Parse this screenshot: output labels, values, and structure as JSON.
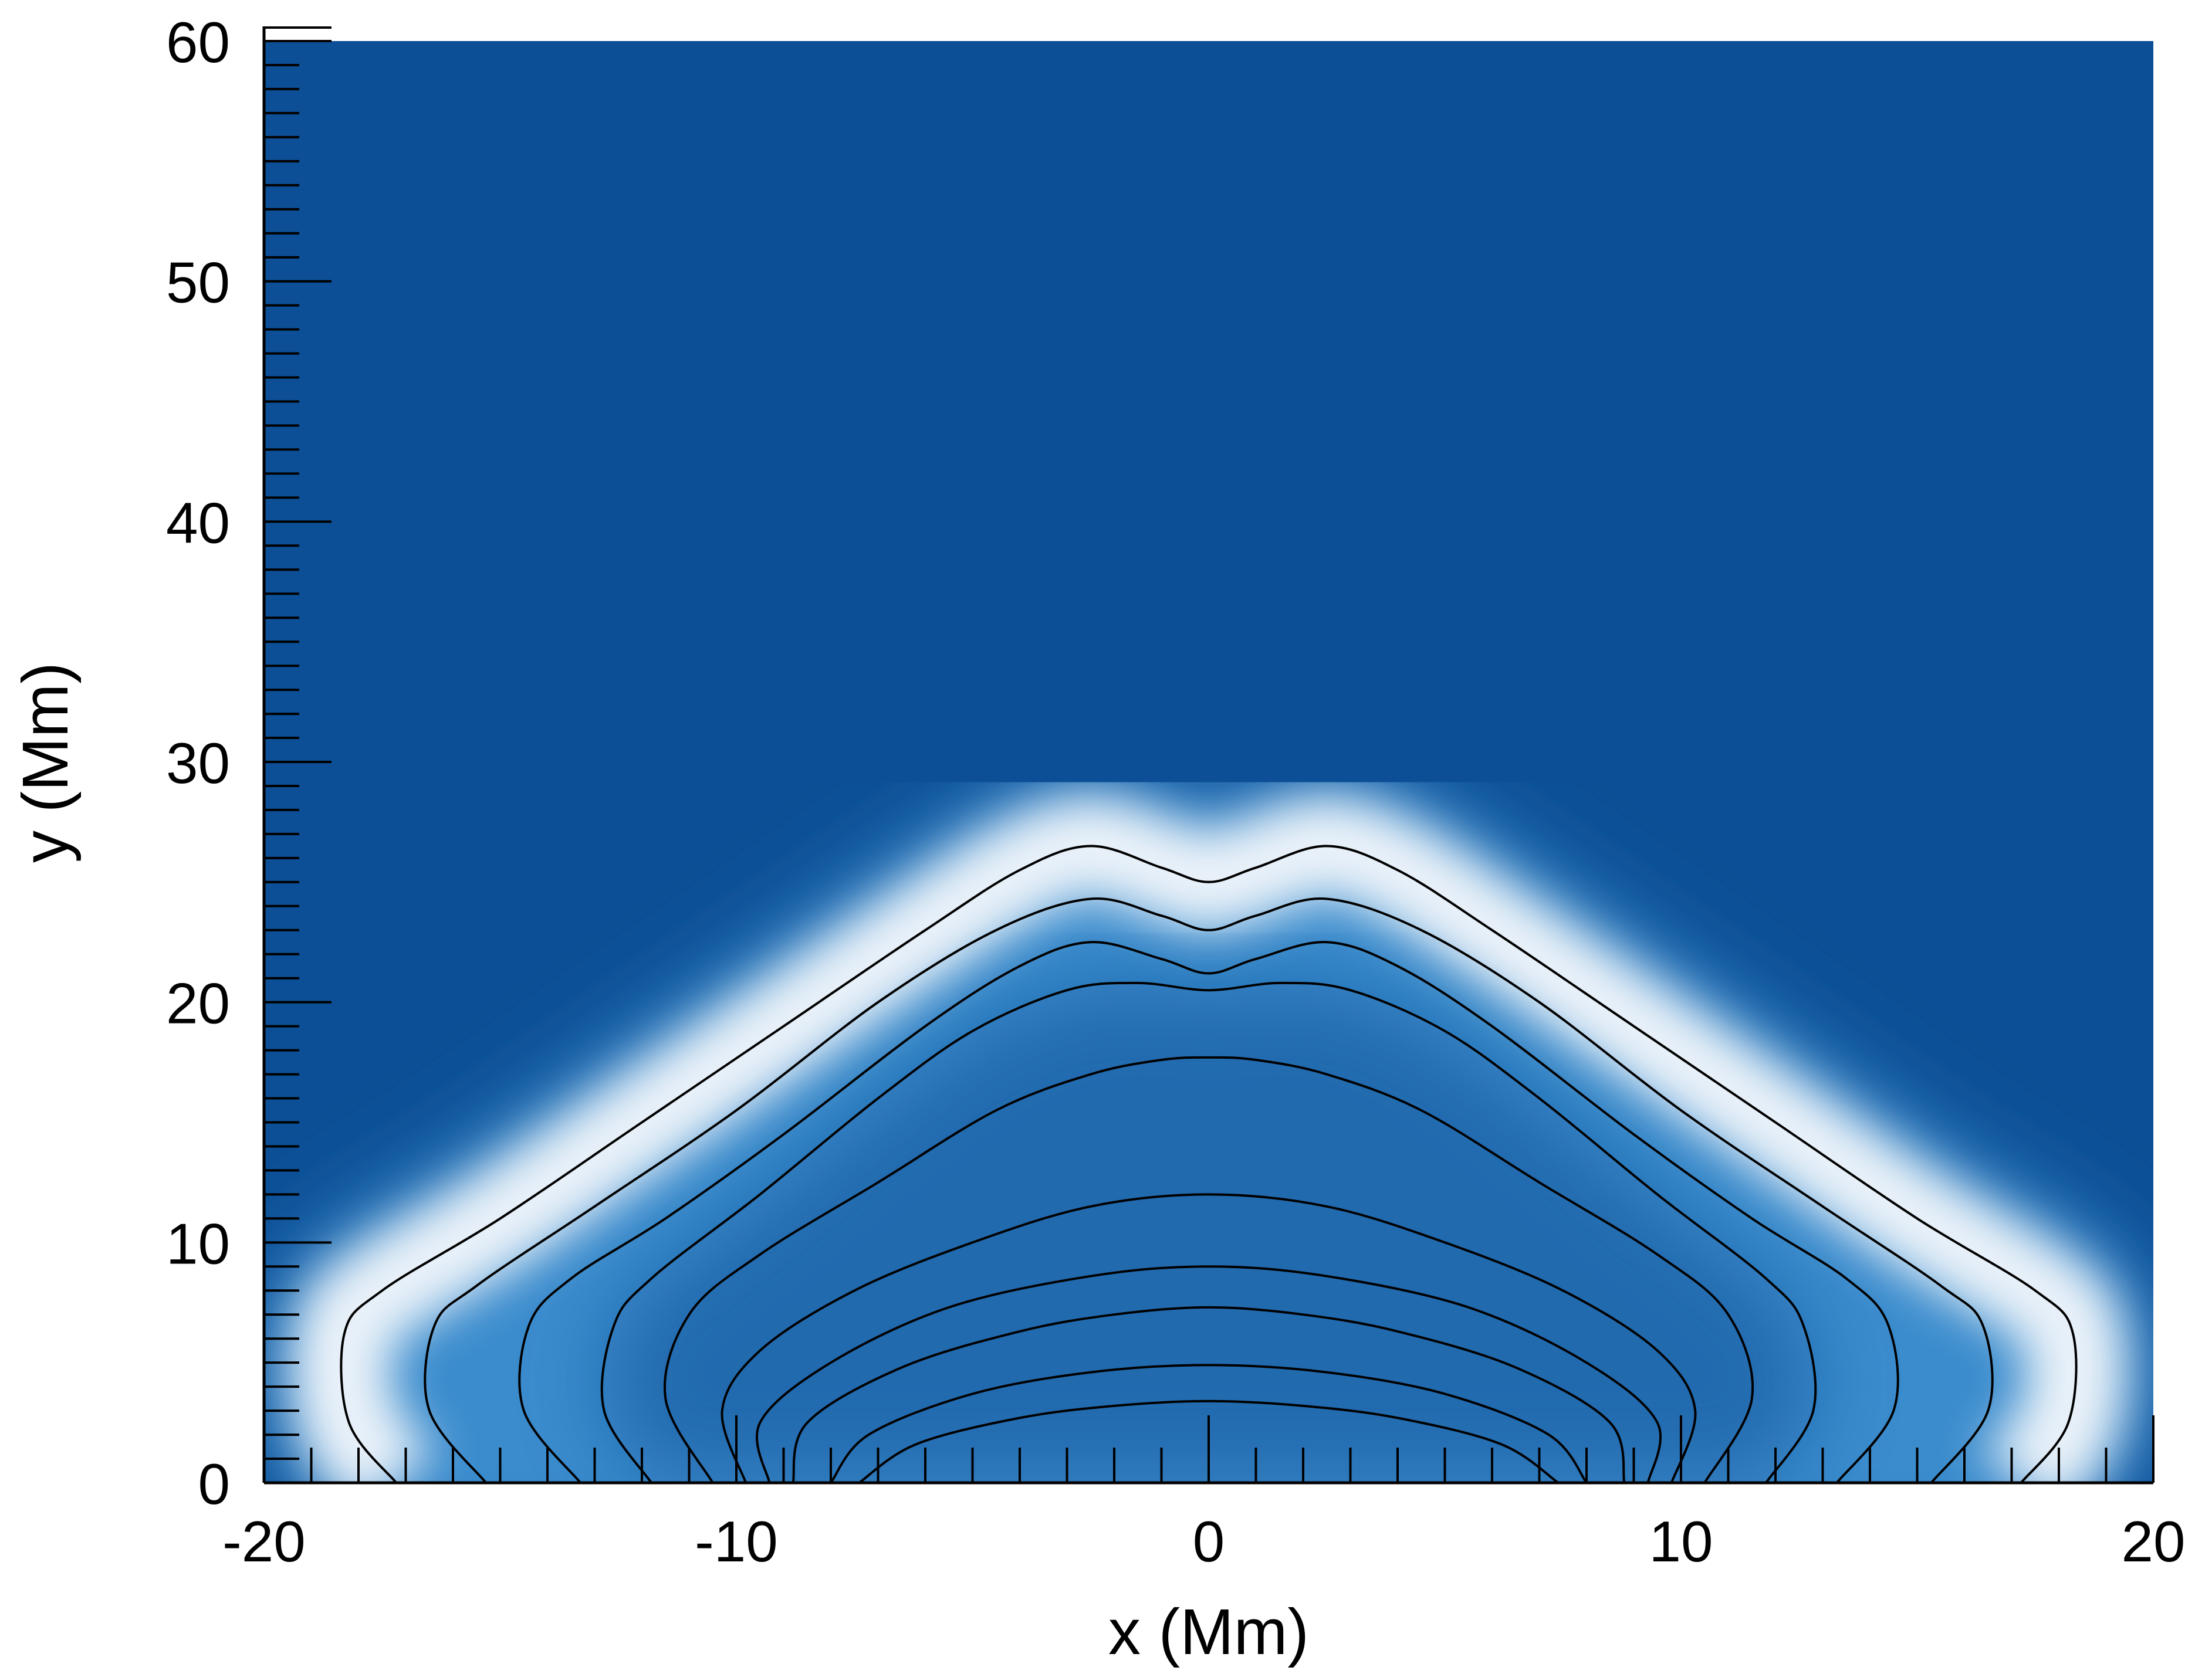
{
  "chart_data": {
    "type": "heatmap",
    "title": "",
    "xlabel": "x (Mm)",
    "ylabel": "y (Mm)",
    "xlim": [
      -20,
      20
    ],
    "ylim": [
      0,
      60
    ],
    "x_ticks": [
      "-20",
      "-10",
      "0",
      "10",
      "20"
    ],
    "y_ticks": [
      "0",
      "10",
      "20",
      "30",
      "40",
      "50",
      "60"
    ],
    "x_tick_values": [
      -20,
      -10,
      0,
      10,
      20
    ],
    "y_tick_values": [
      0,
      10,
      20,
      30,
      40,
      50,
      60
    ],
    "grid": false,
    "colormap": {
      "low": "#0c4f96",
      "mid": "#3a8ccd",
      "high": "#f4f8fc"
    },
    "contour_color": "#000000",
    "contours": [
      {
        "points": [
          [
            -17.2,
            0
          ],
          [
            -18.2,
            2.5
          ],
          [
            -18.3,
            6.2
          ],
          [
            -17.5,
            8
          ],
          [
            -15,
            11
          ],
          [
            -12,
            15
          ],
          [
            -9,
            19
          ],
          [
            -6,
            23
          ],
          [
            -4,
            25.5
          ],
          [
            -2.5,
            26.5
          ],
          [
            -1,
            25.6
          ],
          [
            0,
            25
          ],
          [
            1,
            25.6
          ],
          [
            2.5,
            26.5
          ],
          [
            4,
            25.5
          ],
          [
            6,
            23
          ],
          [
            9,
            19
          ],
          [
            12,
            15
          ],
          [
            15,
            11
          ],
          [
            17.5,
            8
          ],
          [
            18.3,
            6.2
          ],
          [
            18.2,
            2.5
          ],
          [
            17.2,
            0
          ]
        ]
      },
      {
        "points": [
          [
            -15.3,
            0
          ],
          [
            -16.5,
            3
          ],
          [
            -16.4,
            6.5
          ],
          [
            -15.5,
            8.2
          ],
          [
            -13,
            11.5
          ],
          [
            -10,
            15.5
          ],
          [
            -7,
            20
          ],
          [
            -4.5,
            23
          ],
          [
            -2.5,
            24.3
          ],
          [
            -1,
            23.6
          ],
          [
            0,
            23
          ],
          [
            1,
            23.6
          ],
          [
            2.5,
            24.3
          ],
          [
            4.5,
            23
          ],
          [
            7,
            20
          ],
          [
            10,
            15.5
          ],
          [
            13,
            11.5
          ],
          [
            15.5,
            8.2
          ],
          [
            16.4,
            6.5
          ],
          [
            16.5,
            3
          ],
          [
            15.3,
            0
          ]
        ]
      },
      {
        "points": [
          [
            -13.3,
            0
          ],
          [
            -14.5,
            3
          ],
          [
            -14.4,
            6.5
          ],
          [
            -13.5,
            8.5
          ],
          [
            -11.5,
            11
          ],
          [
            -9,
            14.5
          ],
          [
            -6,
            19
          ],
          [
            -4,
            21.5
          ],
          [
            -2.5,
            22.5
          ],
          [
            -1,
            21.8
          ],
          [
            0,
            21.2
          ],
          [
            1,
            21.8
          ],
          [
            2.5,
            22.5
          ],
          [
            4,
            21.5
          ],
          [
            6,
            19
          ],
          [
            9,
            14.5
          ],
          [
            11.5,
            11
          ],
          [
            13.5,
            8.5
          ],
          [
            14.4,
            6.5
          ],
          [
            14.5,
            3
          ],
          [
            13.3,
            0
          ]
        ]
      },
      {
        "points": [
          [
            -11.8,
            0
          ],
          [
            -12.8,
            3
          ],
          [
            -12.6,
            6.5
          ],
          [
            -11.8,
            8.5
          ],
          [
            -9.5,
            12
          ],
          [
            -7,
            16
          ],
          [
            -5,
            18.8
          ],
          [
            -3,
            20.5
          ],
          [
            -1.5,
            20.8
          ],
          [
            0,
            20.5
          ],
          [
            1.5,
            20.8
          ],
          [
            3,
            20.5
          ],
          [
            5,
            18.8
          ],
          [
            7,
            16
          ],
          [
            9.5,
            12
          ],
          [
            11.8,
            8.5
          ],
          [
            12.6,
            6.5
          ],
          [
            12.8,
            3
          ],
          [
            11.8,
            0
          ]
        ]
      },
      {
        "points": [
          [
            -10.5,
            0
          ],
          [
            -11.5,
            3.5
          ],
          [
            -11,
            7
          ],
          [
            -9.5,
            9.5
          ],
          [
            -7,
            12.5
          ],
          [
            -4.5,
            15.5
          ],
          [
            -2.5,
            17
          ],
          [
            -1,
            17.6
          ],
          [
            0,
            17.7
          ],
          [
            1,
            17.6
          ],
          [
            2.5,
            17
          ],
          [
            4.5,
            15.5
          ],
          [
            7,
            12.5
          ],
          [
            9.5,
            9.5
          ],
          [
            11,
            7
          ],
          [
            11.5,
            3.5
          ],
          [
            10.5,
            0
          ]
        ]
      },
      {
        "points": [
          [
            -9.8,
            0
          ],
          [
            -10.3,
            3
          ],
          [
            -9.5,
            5.5
          ],
          [
            -7.5,
            8
          ],
          [
            -5,
            10
          ],
          [
            -2.5,
            11.5
          ],
          [
            0,
            12
          ],
          [
            2.5,
            11.5
          ],
          [
            5,
            10
          ],
          [
            7.5,
            8
          ],
          [
            9.5,
            5.5
          ],
          [
            10.3,
            3
          ],
          [
            9.8,
            0
          ]
        ]
      },
      {
        "points": [
          [
            -9.3,
            0
          ],
          [
            -9.5,
            2.5
          ],
          [
            -8,
            5
          ],
          [
            -5.5,
            7.3
          ],
          [
            -2.5,
            8.6
          ],
          [
            0,
            9
          ],
          [
            2.5,
            8.6
          ],
          [
            5.5,
            7.3
          ],
          [
            8,
            5
          ],
          [
            9.5,
            2.5
          ],
          [
            9.3,
            0
          ]
        ]
      },
      {
        "points": [
          [
            -8.8,
            0
          ],
          [
            -8.5,
            2.5
          ],
          [
            -6.5,
            4.8
          ],
          [
            -4,
            6.3
          ],
          [
            -2,
            7
          ],
          [
            0,
            7.3
          ],
          [
            2,
            7
          ],
          [
            4,
            6.3
          ],
          [
            6.5,
            4.8
          ],
          [
            8.5,
            2.5
          ],
          [
            8.8,
            0
          ]
        ]
      },
      {
        "points": [
          [
            -8,
            0
          ],
          [
            -7.2,
            2
          ],
          [
            -5,
            3.7
          ],
          [
            -2.5,
            4.6
          ],
          [
            0,
            4.9
          ],
          [
            2.5,
            4.6
          ],
          [
            5,
            3.7
          ],
          [
            7.2,
            2
          ],
          [
            8,
            0
          ]
        ]
      },
      {
        "points": [
          [
            -7.4,
            0
          ],
          [
            -6.2,
            1.6
          ],
          [
            -4,
            2.7
          ],
          [
            -2,
            3.2
          ],
          [
            0,
            3.4
          ],
          [
            2,
            3.2
          ],
          [
            4,
            2.7
          ],
          [
            6.2,
            1.6
          ],
          [
            7.4,
            0
          ]
        ]
      }
    ]
  }
}
